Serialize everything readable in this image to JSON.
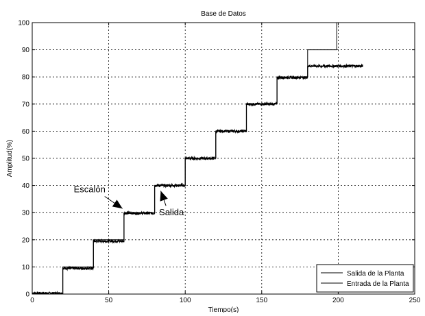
{
  "chart_data": {
    "type": "line",
    "title": "Base de Datos",
    "xlabel": "Tiempo(s)",
    "ylabel": "Amplitud(%)",
    "xlim": [
      0,
      250
    ],
    "ylim": [
      0,
      100
    ],
    "xticks": [
      0,
      50,
      100,
      150,
      200,
      250
    ],
    "yticks": [
      0,
      10,
      20,
      30,
      40,
      50,
      60,
      70,
      80,
      90,
      100
    ],
    "grid": true,
    "legend_position": "bottom-right",
    "series": [
      {
        "name": "Salida de la Planta",
        "color": "#000000",
        "noisy": true,
        "x": [
          0,
          20,
          20,
          40,
          40,
          60,
          60,
          80,
          80,
          100,
          100,
          120,
          120,
          140,
          140,
          160,
          160,
          180,
          180,
          216
        ],
        "y": [
          0.3,
          0.3,
          9.5,
          9.5,
          19.5,
          19.5,
          29.8,
          29.8,
          40,
          40,
          50,
          50,
          60,
          60,
          70,
          70,
          79.8,
          79.8,
          84,
          84
        ]
      },
      {
        "name": "Entrada de la Planta",
        "color": "#000000",
        "noisy": false,
        "x": [
          0,
          20,
          20,
          40,
          40,
          60,
          60,
          80,
          80,
          100,
          100,
          120,
          120,
          140,
          140,
          160,
          160,
          180,
          180,
          199,
          199
        ],
        "y": [
          0,
          0,
          10,
          10,
          20,
          20,
          30,
          30,
          40,
          40,
          50,
          50,
          60,
          60,
          70,
          70,
          80,
          80,
          90,
          90,
          100
        ]
      }
    ],
    "annotations": [
      {
        "text": "Escalón",
        "x": 37.5,
        "y": 37.5,
        "arrow_to": [
          59,
          31.5
        ]
      },
      {
        "text": "Salida",
        "x": 91,
        "y": 29,
        "arrow_to": [
          84,
          38
        ]
      }
    ]
  }
}
